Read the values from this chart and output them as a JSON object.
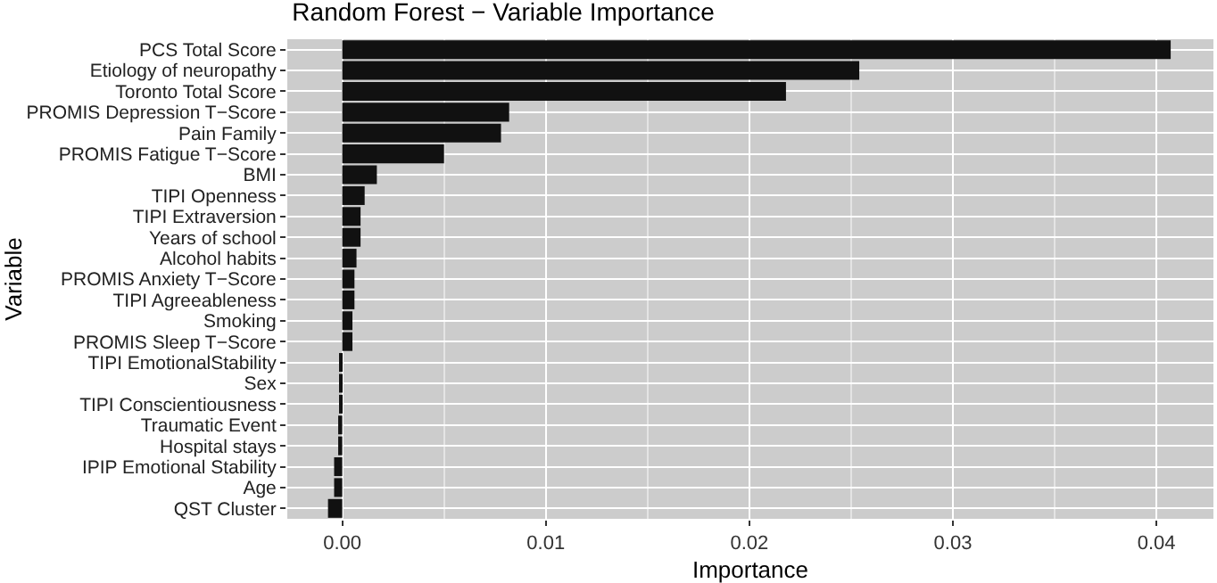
{
  "chart_data": {
    "type": "bar",
    "orientation": "horizontal",
    "title": "Random Forest − Variable Importance",
    "xlabel": "Importance",
    "ylabel": "Variable",
    "categories": [
      "PCS Total Score",
      "Etiology of neuropathy",
      "Toronto Total Score",
      "PROMIS Depression T−Score",
      "Pain Family",
      "PROMIS Fatigue T−Score",
      "BMI",
      "TIPI Openness",
      "TIPI Extraversion",
      "Years of school",
      "Alcohol habits",
      "PROMIS Anxiety T−Score",
      "TIPI Agreeableness",
      "Smoking",
      "PROMIS Sleep T−Score",
      "TIPI EmotionalStability",
      "Sex",
      "TIPI Conscientiousness",
      "Traumatic Event",
      "Hospital stays",
      "IPIP Emotional Stability",
      "Age",
      "QST Cluster"
    ],
    "values": [
      0.0407,
      0.0254,
      0.0218,
      0.0082,
      0.0078,
      0.005,
      0.0017,
      0.0011,
      0.0009,
      0.0009,
      0.0007,
      0.0006,
      0.0006,
      0.0005,
      0.0005,
      -0.0001,
      -0.0001,
      -0.0001,
      -0.0002,
      -0.0002,
      -0.0004,
      -0.0004,
      -0.0007
    ],
    "color": "#111111",
    "xlim": [
      -0.0027,
      0.0428
    ],
    "xticks": [
      {
        "value": 0,
        "label": "0.00"
      },
      0.01,
      0.02,
      0.03,
      0.04
    ],
    "grid": true
  }
}
